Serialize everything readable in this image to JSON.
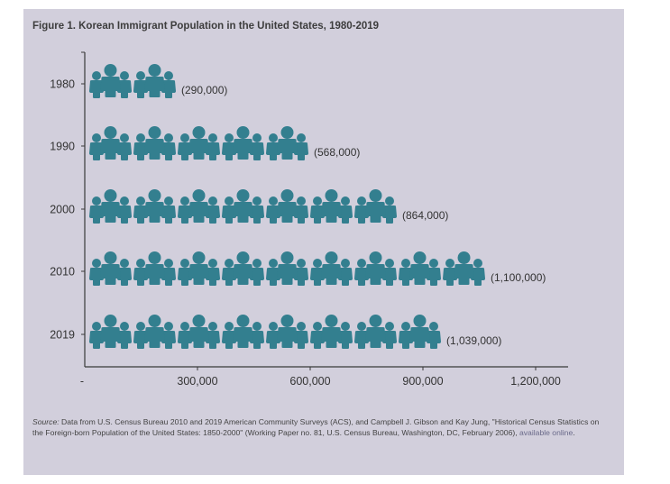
{
  "figure": {
    "title": "Figure 1. Korean Immigrant Population in the United States, 1980-2019",
    "source_label": "Source:",
    "source_text": " Data from U.S. Census Bureau 2010 and 2019 American Community Surveys (ACS), and Campbell J. Gibson and Kay Jung, \"Historical Census Statistics on the Foreign-born Population of the United States: 1850-2000\" (Working Paper no. 81, U.S. Census Bureau, Washington, DC, February 2006), ",
    "source_link": "available online",
    "source_end": "."
  },
  "colors": {
    "background": "#d2cfdc",
    "icon": "#337f8f",
    "axis": "#3a3a3a",
    "text": "#333333"
  },
  "chart_data": {
    "type": "bar",
    "style": "pictogram",
    "icon": "family-of-three-icon",
    "title": "Figure 1. Korean Immigrant Population in the United States, 1980-2019",
    "orientation": "horizontal",
    "categories": [
      "1980",
      "1990",
      "2000",
      "2010",
      "2019"
    ],
    "values": [
      290000,
      568000,
      864000,
      1100000,
      1039000
    ],
    "icon_counts": [
      2,
      5,
      7,
      9,
      8
    ],
    "data_labels": [
      "(290,000)",
      "(568,000)",
      "(864,000)",
      "(1,100,000)",
      "(1,039,000)"
    ],
    "xlabel": "",
    "ylabel": "",
    "xlim": [
      0,
      1280000
    ],
    "x_ticks": [
      0,
      300000,
      600000,
      900000,
      1200000
    ],
    "x_tick_labels": [
      "-",
      "300,000",
      "600,000",
      "900,000",
      "1,200,000"
    ],
    "grid": false,
    "legend": "none"
  }
}
